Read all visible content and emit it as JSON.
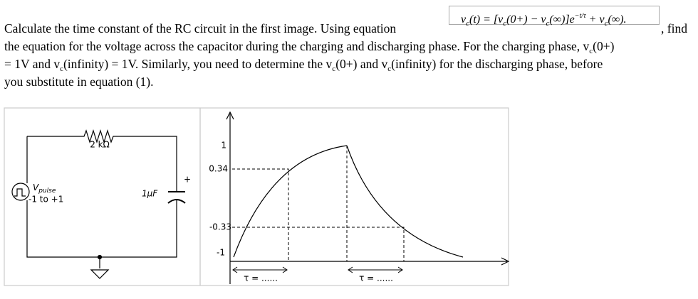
{
  "question": {
    "lines": [
      [
        {
          "text": "Calculate the time constant of the RC circuit in the first image. Using equation"
        }
      ],
      [
        {
          "text": "the equation for the voltage across the capacitor during the charging and discharging phase. For the charging phase, v"
        },
        {
          "text": "c",
          "sub": true
        },
        {
          "text": "(0+)"
        }
      ],
      [
        {
          "text": "= 1V and v"
        },
        {
          "text": "c",
          "sub": true
        },
        {
          "text": "(infinity) = 1V. Similarly, you need to determine the v"
        },
        {
          "text": "c",
          "sub": true
        },
        {
          "text": "(0+) and v"
        },
        {
          "text": "c",
          "sub": true
        },
        {
          "text": "(infinity) for the discharging phase, before"
        }
      ],
      [
        {
          "text": "you substitute in equation (1)."
        }
      ]
    ],
    "after_equation": ", find",
    "equation": [
      {
        "text": "v"
      },
      {
        "text": "c",
        "sub": true
      },
      {
        "text": "(t) = [v"
      },
      {
        "text": "c",
        "sub": true
      },
      {
        "text": "(0+) − v"
      },
      {
        "text": "c",
        "sub": true
      },
      {
        "text": "(∞)]e"
      },
      {
        "text": "−t/τ",
        "sup": true
      },
      {
        "text": " + v"
      },
      {
        "text": "c",
        "sub": true
      },
      {
        "text": "(∞)."
      }
    ]
  },
  "circuit": {
    "resistor": "2 kΩ",
    "source_name": [
      {
        "text": "V"
      },
      {
        "text": "pulse",
        "sub": true
      }
    ],
    "source_range": "-1 to +1",
    "capacitor": "1µF",
    "polarity": "+"
  },
  "graph": {
    "tick_labels": [
      "1",
      "0.34",
      "-0.33",
      "-1"
    ],
    "tau_labels": [
      "τ = ......",
      "τ = ......"
    ]
  }
}
